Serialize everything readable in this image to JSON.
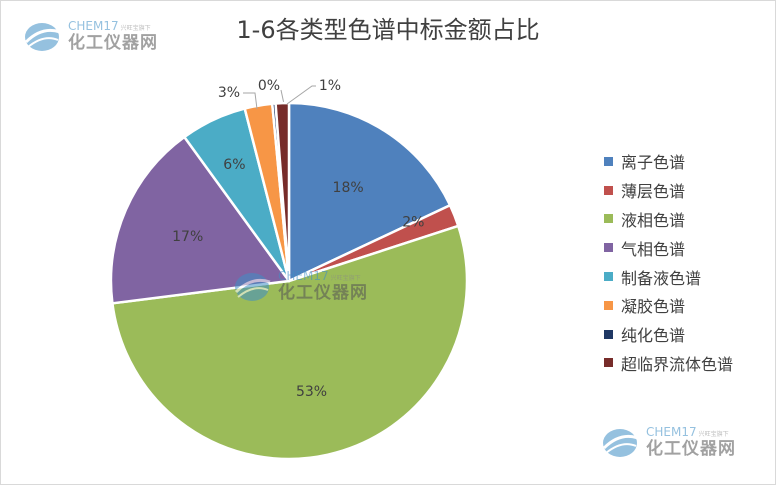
{
  "chart_data": {
    "type": "pie",
    "title": "1-6各类型色谱中标金额占比",
    "legend_position": "right",
    "slices": [
      {
        "label": "离子色谱",
        "value": 18,
        "display": "18%",
        "color": "#4f81bd"
      },
      {
        "label": "薄层色谱",
        "value": 2,
        "display": "2%",
        "color": "#c0504d"
      },
      {
        "label": "液相色谱",
        "value": 53,
        "display": "53%",
        "color": "#9bbb59"
      },
      {
        "label": "气相色谱",
        "value": 17,
        "display": "17%",
        "color": "#8064a2"
      },
      {
        "label": "制备液色谱",
        "value": 6,
        "display": "6%",
        "color": "#4bacc6"
      },
      {
        "label": "凝胶色谱",
        "value": 2.5,
        "display": "3%",
        "color": "#f79646"
      },
      {
        "label": "纯化色谱",
        "value": 0.3,
        "display": "0%",
        "color": "#1f3864"
      },
      {
        "label": "超临界流体色谱",
        "value": 1.2,
        "display": "1%",
        "color": "#772c2a"
      }
    ]
  },
  "watermark": {
    "brand": "CHEM17",
    "slogan": "兴旺宝旗下",
    "name": "化工仪器网"
  }
}
